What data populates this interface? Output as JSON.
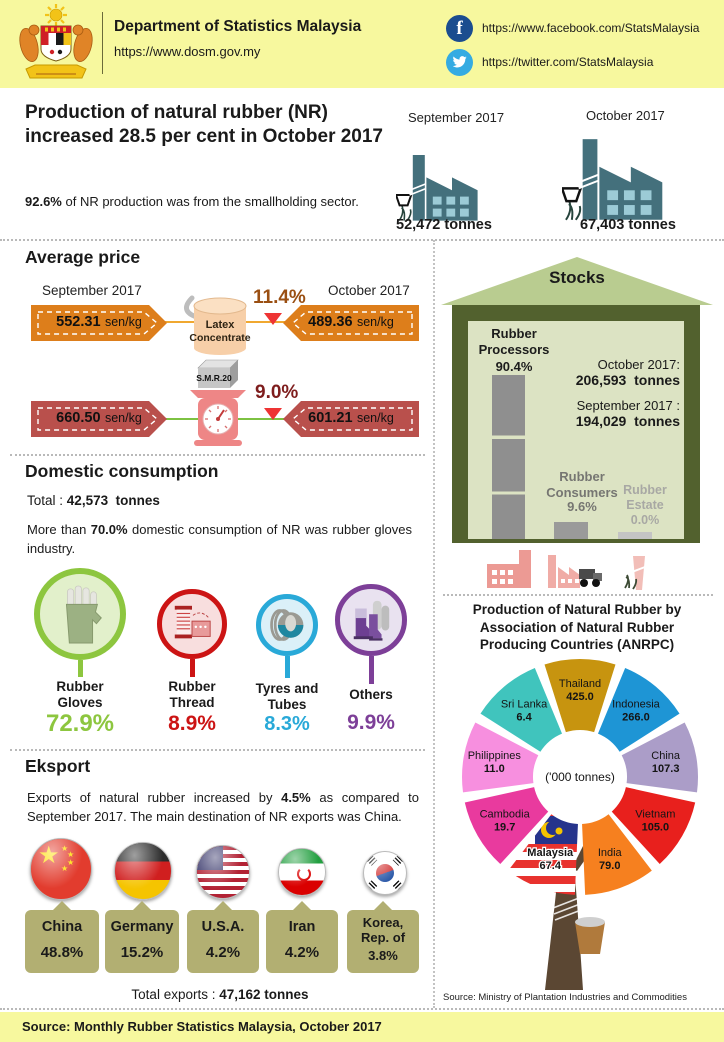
{
  "header": {
    "org_name": "Department of Statistics Malaysia",
    "org_url": "https://www.dosm.gov.my",
    "facebook_url": "https://www.facebook.com/StatsMalaysia",
    "twitter_url": "https://twitter.com/StatsMalaysia"
  },
  "hero": {
    "headline": "Production of natural rubber (NR) increased 28.5 per cent in October 2017",
    "note_highlight": "92.6%",
    "note_text": " of NR production was from the smallholding sector.",
    "production": [
      {
        "period": "September 2017",
        "value": "52,472 tonnes"
      },
      {
        "period": "October 2017",
        "value": "67,403 tonnes"
      }
    ]
  },
  "average_price": {
    "title": "Average price",
    "left_period": "September 2017",
    "right_period": "October 2017",
    "unit": "sen/kg",
    "rows": [
      {
        "product_lines": [
          "Latex",
          "Concentrate"
        ],
        "september": "552.31",
        "october": "489.36",
        "change": "11.4%"
      },
      {
        "product": "S.M.R.20",
        "september": "660.50",
        "october": "601.21",
        "change": "9.0%"
      }
    ]
  },
  "domestic": {
    "title": "Domestic consumption",
    "total_label": "Total :",
    "total_value": "42,573",
    "total_unit": "tonnes",
    "note_pre": "More than ",
    "note_highlight": "70.0%",
    "note_post": "  domestic consumption  of NR was rubber gloves industry.",
    "items": [
      {
        "name": "Rubber Gloves",
        "pct": "72.9%",
        "color": "#8dc63f"
      },
      {
        "name": "Rubber Thread",
        "pct": "8.9%",
        "color": "#cc1414"
      },
      {
        "name": "Tyres and Tubes",
        "pct": "8.3%",
        "color": "#29a9d8"
      },
      {
        "name": "Others",
        "pct": "9.9%",
        "color": "#7d3f98"
      }
    ]
  },
  "export": {
    "title": "Eksport",
    "note_pre": "Exports  of  natural  rubber  increased  by ",
    "note_highlight": "4.5%",
    "note_post": "  as  compared  to September  2017.  The main destination  of NR exports was China.",
    "countries": [
      {
        "name": "China",
        "pct": "48.8%"
      },
      {
        "name": "Germany",
        "pct": "15.2%"
      },
      {
        "name": "U.S.A.",
        "pct": "4.2%"
      },
      {
        "name": "Iran",
        "pct": "4.2%"
      },
      {
        "name": "Korea, Rep. of",
        "pct": "3.8%"
      }
    ],
    "total_label": "Total exports :",
    "total_value": "47,162",
    "total_unit": "tonnes"
  },
  "stocks": {
    "title": "Stocks",
    "october_label": "October 2017:",
    "october_value": "206,593",
    "october_unit": "tonnes",
    "september_label": "September 2017 :",
    "september_value": "194,029",
    "september_unit": "tonnes",
    "categories": [
      {
        "name": "Rubber Processors",
        "pct": "90.4%"
      },
      {
        "name": "Rubber Consumers",
        "pct": "9.6%"
      },
      {
        "name": "Rubber Estate",
        "pct": "0.0%"
      }
    ]
  },
  "anrpc": {
    "title": "Production of Natural Rubber by Association of Natural Rubber Producing Countries (ANRPC)",
    "center_label": "('000 tonnes)",
    "source": "Source:  Ministry  of Plantation  Industries  and Commodities"
  },
  "footer": {
    "source": "Source:  Monthly  Rubber Statistics  Malaysia,  October 2017"
  },
  "colors": {
    "header_bg": "#f7f89e",
    "accent_orange": "#dd7e1b",
    "accent_dark_red": "#b9504c",
    "decrease_red": "#ee3434",
    "gloves_green": "#8dc63f",
    "thread_red": "#cc1414",
    "tyres_blue": "#29a9d8",
    "others_purple": "#7d3f98",
    "stocks_roof": "#b9cc90",
    "stocks_wall": "#52612e",
    "stocks_interior": "#dce3c3",
    "country_box": "#b2af72",
    "facebook_blue": "#1b4d8f",
    "twitter_blue": "#35abe2"
  },
  "icons": {
    "coat_of_arms": "malaysia-crest",
    "facebook": "circle-f",
    "twitter": "circle-bird",
    "production": "factory",
    "latex": "cylinder-container-with-swoosh",
    "smr20": "weighing-scale-with-box",
    "decrease": "red-down-triangle",
    "gloves": "rubber-glove",
    "thread": "thread-spool",
    "tyres": "tyre",
    "others": "rubber-boots",
    "stocks": "warehouse-house",
    "stock_sectors": [
      "factory",
      "factory-with-truck",
      "plant"
    ],
    "flags": [
      "china",
      "germany",
      "usa",
      "iran",
      "south-korea"
    ],
    "tree": "tapped-rubber-tree-with-bucket"
  },
  "chart_data": [
    {
      "type": "pie",
      "subtype": "donut, equal-angle slices, clockwise from top",
      "title": "Production of Natural Rubber by Association of Natural Rubber Producing Countries (ANRPC)",
      "center_label": "('000 tonnes)",
      "unit": "'000 tonnes",
      "slices": [
        {
          "name": "Thailand",
          "value": 425.0,
          "color": "#c7940f"
        },
        {
          "name": "Indonesia",
          "value": 266.0,
          "color": "#1e95d5"
        },
        {
          "name": "China",
          "value": 107.3,
          "color": "#ab9dc8"
        },
        {
          "name": "Vietnam",
          "value": 105.0,
          "color": "#e8201d"
        },
        {
          "name": "India",
          "value": 79.0,
          "color": "#f6801f"
        },
        {
          "name": "Malaysia",
          "value": 67.4,
          "color": "malaysia-flag"
        },
        {
          "name": "Cambodia",
          "value": 19.7,
          "color": "#e93a9e"
        },
        {
          "name": "Philippines",
          "value": 11.0,
          "color": "#f78fdf"
        },
        {
          "name": "Sri Lanka",
          "value": 6.4,
          "color": "#40c4bd"
        }
      ]
    },
    {
      "type": "bar",
      "title": "Stocks",
      "categories": [
        "Rubber Processors",
        "Rubber Consumers",
        "Rubber Estate"
      ],
      "values": [
        90.4,
        9.6,
        0.0
      ],
      "unit": "%",
      "annotations": [
        "October 2017: 206,593 tonnes",
        "September 2017 : 194,029 tonnes"
      ]
    }
  ]
}
